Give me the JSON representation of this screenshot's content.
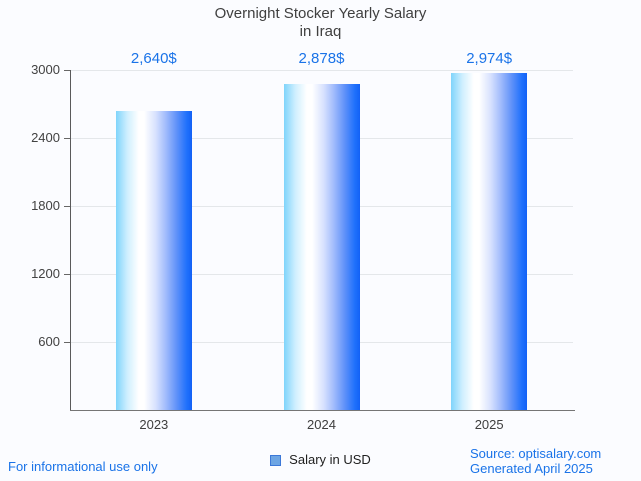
{
  "title": {
    "line1": "Overnight Stocker Yearly Salary",
    "line2": "in Iraq"
  },
  "chart_data": {
    "type": "bar",
    "title": "Overnight Stocker Yearly Salary in Iraq",
    "categories": [
      "2023",
      "2024",
      "2025"
    ],
    "values": [
      2640,
      2878,
      2974
    ],
    "value_labels": [
      "2,640$",
      "2,878$",
      "2,974$"
    ],
    "series_name": "Salary in USD",
    "xlabel": "",
    "ylabel": "",
    "ylim": [
      0,
      3000
    ],
    "yticks": [
      600,
      1200,
      1800,
      2400,
      3000
    ],
    "grid": true,
    "legend_position": "bottom"
  },
  "legend": {
    "label": "Salary in USD",
    "swatch_fill": "#6da5e3",
    "swatch_border": "#3c78d8"
  },
  "footer": {
    "left": "For informational use only",
    "source": "Source: optisalary.com",
    "generated": "Generated April 2025"
  },
  "colors": {
    "label_blue": "#1a73e8",
    "footer_blue": "#1a73e8",
    "bar_left": "#7fd4fb",
    "bar_highlight": "#ffffff",
    "bar_right": "#1261f6",
    "grid": "#e4e7ea",
    "axis": "#666666",
    "title_text": "#3f3f3f",
    "background": "#fbfcff"
  }
}
